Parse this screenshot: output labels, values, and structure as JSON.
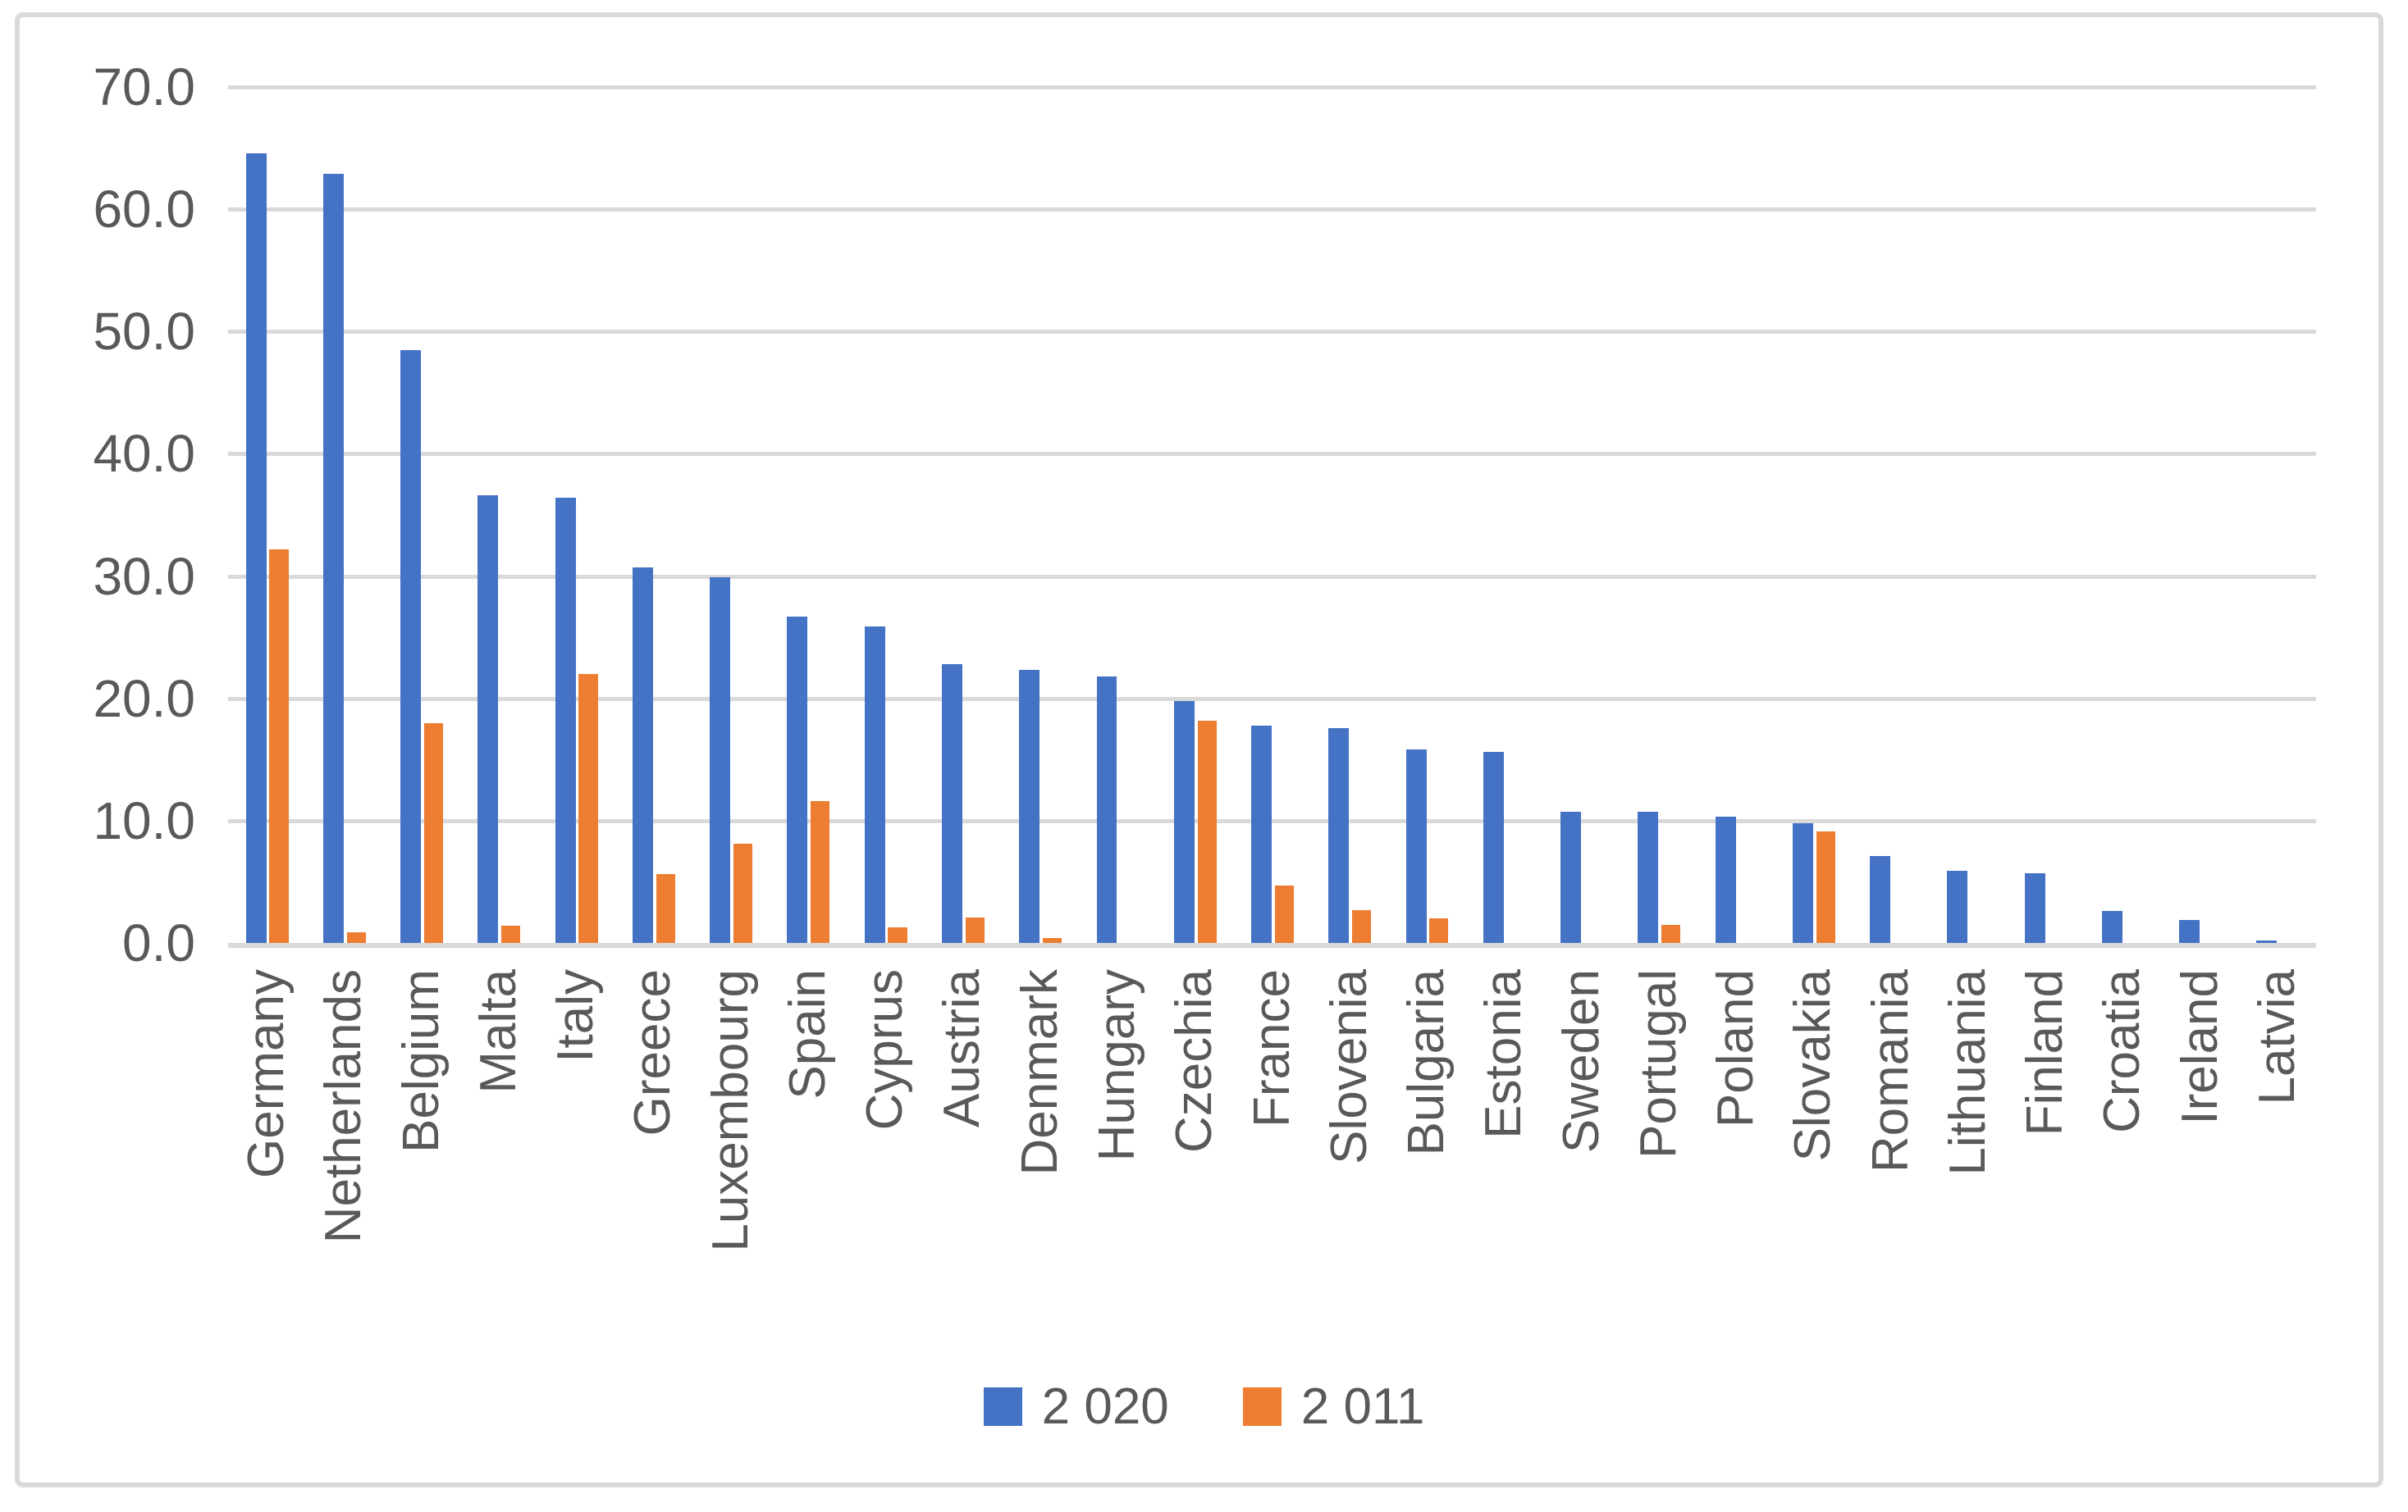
{
  "chart_data": {
    "type": "bar",
    "title": "",
    "xlabel": "",
    "ylabel": "",
    "categories": [
      "Germany",
      "Netherlands",
      "Belgium",
      "Malta",
      "Italy",
      "Greece",
      "Luxembourg",
      "Spain",
      "Cyprus",
      "Austria",
      "Denmark",
      "Hungary",
      "Czechia",
      "France",
      "Slovenia",
      "Bulgaria",
      "Estonia",
      "Sweden",
      "Portugal",
      "Poland",
      "Slovakia",
      "Romania",
      "Lithuania",
      "Finland",
      "Croatia",
      "Ireland",
      "Latvia"
    ],
    "series": [
      {
        "name": "2 020",
        "color": "#4472C4",
        "values": [
          64.6,
          62.9,
          48.5,
          36.6,
          36.4,
          30.7,
          29.9,
          26.7,
          25.9,
          22.8,
          22.3,
          21.8,
          19.8,
          17.8,
          17.6,
          15.8,
          15.6,
          10.7,
          10.7,
          10.3,
          9.8,
          7.1,
          5.9,
          5.7,
          2.6,
          1.9,
          0.2
        ]
      },
      {
        "name": "2 011",
        "color": "#ED7D31",
        "values": [
          32.2,
          0.9,
          18.0,
          1.4,
          22.0,
          5.6,
          8.1,
          11.6,
          1.3,
          2.1,
          0.4,
          0.0,
          18.2,
          4.7,
          2.7,
          2.0,
          0.0,
          0.0,
          1.5,
          0.0,
          9.1,
          0.0,
          0.0,
          0.0,
          0.0,
          0.0,
          0.0
        ]
      }
    ],
    "ylim": [
      0,
      70
    ],
    "ytick_step": 10,
    "yticks": [
      "70.0",
      "60.0",
      "50.0",
      "40.0",
      "30.0",
      "20.0",
      "10.0",
      "0.0"
    ],
    "grid": true,
    "legend_position": "bottom"
  },
  "colors": {
    "background": "#FFFFFF",
    "frame_border": "#D9D9D9",
    "gridline": "#D9D9D9",
    "axis_line": "#D9D9D9",
    "tick_text": "#595959",
    "category_text": "#595959",
    "legend_text": "#595959",
    "series_2020": "#4472C4",
    "series_2011": "#ED7D31"
  }
}
